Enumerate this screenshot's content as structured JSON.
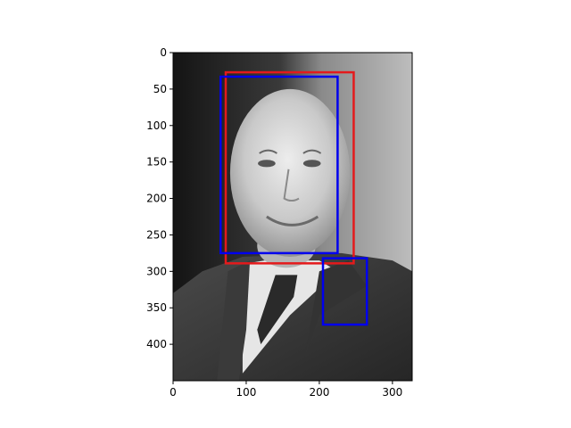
{
  "chart_data": {
    "type": "image",
    "title": "",
    "xlabel": "",
    "ylabel": "",
    "xlim": [
      0,
      327
    ],
    "ylim": [
      450,
      0
    ],
    "grid": false,
    "image": {
      "description": "grayscale photo of an older man in a suit and tie",
      "colormap": "gray"
    },
    "x_ticks": [
      0,
      100,
      200,
      300
    ],
    "y_ticks": [
      0,
      50,
      100,
      150,
      200,
      250,
      300,
      350,
      400
    ],
    "boxes": [
      {
        "color": "#e41a1c",
        "x0": 72,
        "y0": 27,
        "x1": 247,
        "y1": 289
      },
      {
        "color": "#0000ee",
        "x0": 65,
        "y0": 33,
        "x1": 225,
        "y1": 275
      },
      {
        "color": "#0000ee",
        "x0": 205,
        "y0": 282,
        "x1": 265,
        "y1": 373
      }
    ]
  }
}
